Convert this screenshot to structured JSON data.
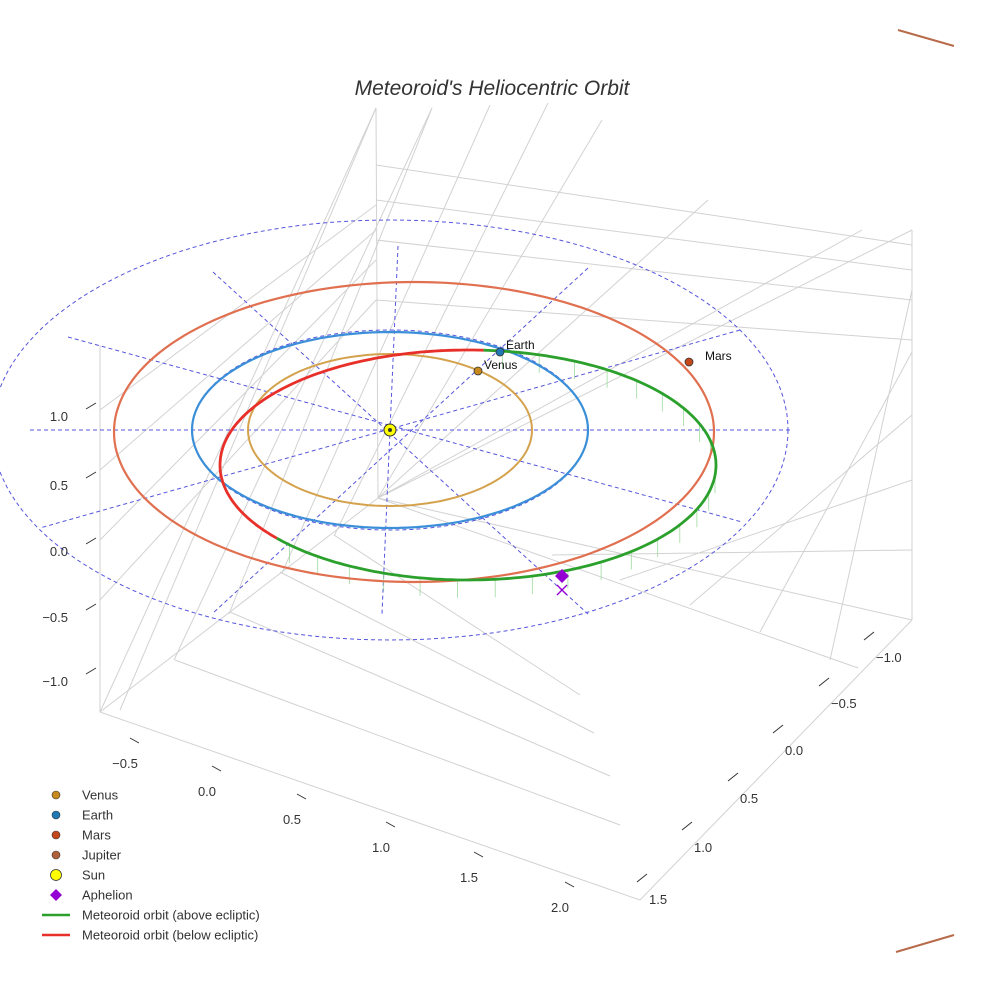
{
  "chart_data": {
    "type": "3d-orbit",
    "title": "Meteoroid's Heliocentric Orbit",
    "axes": {
      "x_ticks": [
        "−0.5",
        "0.0",
        "0.5",
        "1.0",
        "1.5",
        "2.0"
      ],
      "y_ticks": [
        "−1.0",
        "−0.5",
        "0.0",
        "0.5",
        "1.0",
        "1.5"
      ],
      "z_ticks": [
        "1.0",
        "0.5",
        "0.0",
        "−0.5",
        "−1.0"
      ],
      "grid": true
    },
    "bodies": [
      {
        "name": "Venus",
        "label": "Venus",
        "color": "#d4a24c",
        "marker_color": "#c88a1e",
        "a": 0.72
      },
      {
        "name": "Earth",
        "label": "Earth",
        "color": "#3a8fd8",
        "marker_color": "#1f77b4",
        "a": 1.0
      },
      {
        "name": "Mars",
        "label": "Mars",
        "color": "#e07050",
        "marker_color": "#c4481c",
        "a": 1.52
      },
      {
        "name": "Jupiter",
        "label": "Jupiter",
        "color": "#b86b4b",
        "marker_color": "#b0603a",
        "a": 5.2
      },
      {
        "name": "Sun",
        "label": "Sun",
        "color": "#ffff00",
        "a": 0
      }
    ],
    "meteoroid_orbit": {
      "above_label": "Meteoroid orbit (above ecliptic)",
      "below_label": "Meteoroid orbit (below ecliptic)",
      "above_color": "#2ca02c",
      "below_color": "#e8302a"
    },
    "aphelion": {
      "label": "Aphelion",
      "color": "#9400d3"
    },
    "legend": [
      {
        "label": "Venus",
        "kind": "dot",
        "color": "#c88a1e"
      },
      {
        "label": "Earth",
        "kind": "dot",
        "color": "#1f77b4"
      },
      {
        "label": "Mars",
        "kind": "dot",
        "color": "#c4481c"
      },
      {
        "label": "Jupiter",
        "kind": "dot",
        "color": "#b0603a"
      },
      {
        "label": "Sun",
        "kind": "sun",
        "color": "#ffff00"
      },
      {
        "label": "Aphelion",
        "kind": "diamond",
        "color": "#9400d3"
      },
      {
        "label": "Meteoroid orbit (above ecliptic)",
        "kind": "line",
        "color": "#2ca02c"
      },
      {
        "label": "Meteoroid orbit (below ecliptic)",
        "kind": "line",
        "color": "#e8302a"
      }
    ],
    "legend_position": "bottom-left"
  }
}
